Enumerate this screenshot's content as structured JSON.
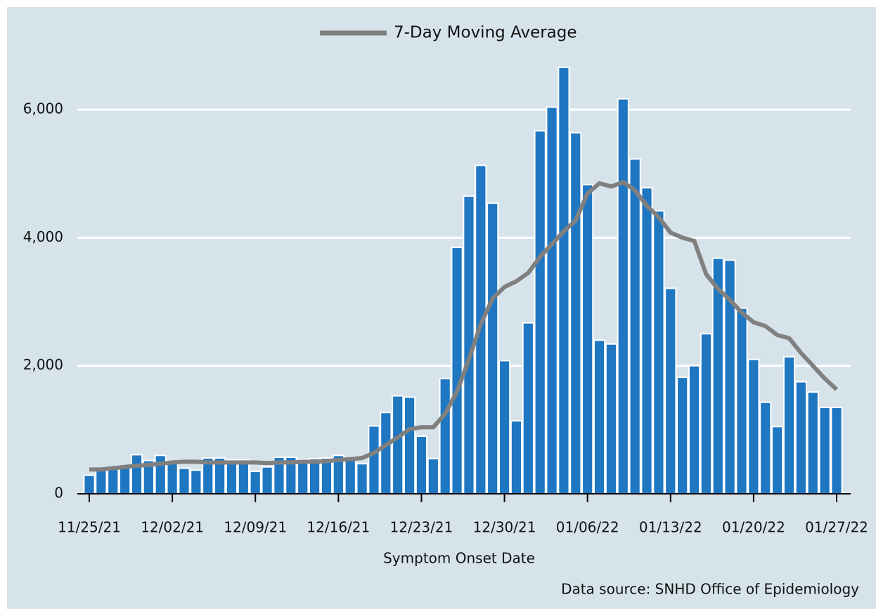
{
  "chart_data": {
    "type": "bar",
    "xlabel": "Symptom Onset Date",
    "source": "Data source: SNHD Office of Epidemiology",
    "categories": [
      "11/25/21",
      null,
      null,
      null,
      null,
      null,
      null,
      "12/02/21",
      null,
      null,
      null,
      null,
      null,
      null,
      "12/09/21",
      null,
      null,
      null,
      null,
      null,
      null,
      "12/16/21",
      null,
      null,
      null,
      null,
      null,
      null,
      "12/23/21",
      null,
      null,
      null,
      null,
      null,
      null,
      "12/30/21",
      null,
      null,
      null,
      null,
      null,
      null,
      "01/06/22",
      null,
      null,
      null,
      null,
      null,
      null,
      "01/13/22",
      null,
      null,
      null,
      null,
      null,
      null,
      "01/20/22",
      null,
      null,
      null,
      null,
      null,
      null,
      "01/27/22"
    ],
    "series": [
      {
        "type": "bar",
        "color": "#1f77c2",
        "values": [
          290,
          380,
          400,
          420,
          610,
          520,
          600,
          510,
          400,
          370,
          560,
          560,
          530,
          530,
          350,
          420,
          570,
          570,
          540,
          550,
          560,
          600,
          560,
          470,
          1060,
          1270,
          1530,
          1510,
          900,
          550,
          1800,
          3850,
          4650,
          5130,
          4540,
          2080,
          1140,
          2670,
          5670,
          6040,
          6660,
          5640,
          4830,
          2400,
          2340,
          6170,
          5230,
          4780,
          4420,
          3210,
          1820,
          2000,
          2500,
          3680,
          3650,
          2900,
          2100,
          1430,
          1050,
          2140,
          1750,
          1590,
          1350,
          1350
        ]
      },
      {
        "type": "line",
        "name": "7-Day Moving Average",
        "color": "#808080",
        "values": [
          380,
          380,
          400,
          420,
          440,
          450,
          470,
          490,
          500,
          500,
          490,
          490,
          490,
          490,
          490,
          480,
          490,
          490,
          500,
          500,
          510,
          530,
          540,
          560,
          640,
          760,
          880,
          1010,
          1040,
          1040,
          1250,
          1600,
          2100,
          2650,
          3050,
          3230,
          3320,
          3450,
          3700,
          3900,
          4100,
          4270,
          4690,
          4850,
          4800,
          4870,
          4740,
          4500,
          4320,
          4080,
          4000,
          3950,
          3430,
          3200,
          3030,
          2830,
          2680,
          2620,
          2480,
          2430,
          2200,
          2000,
          1800,
          1630
        ]
      }
    ],
    "ylim": [
      0,
      7000
    ],
    "yticks": [
      0,
      {
        "value": 2000,
        "label": "2,000"
      },
      {
        "value": 4000,
        "label": "4,000"
      },
      {
        "value": 6000,
        "label": "6,000"
      }
    ],
    "grid": true,
    "legend": "top"
  }
}
